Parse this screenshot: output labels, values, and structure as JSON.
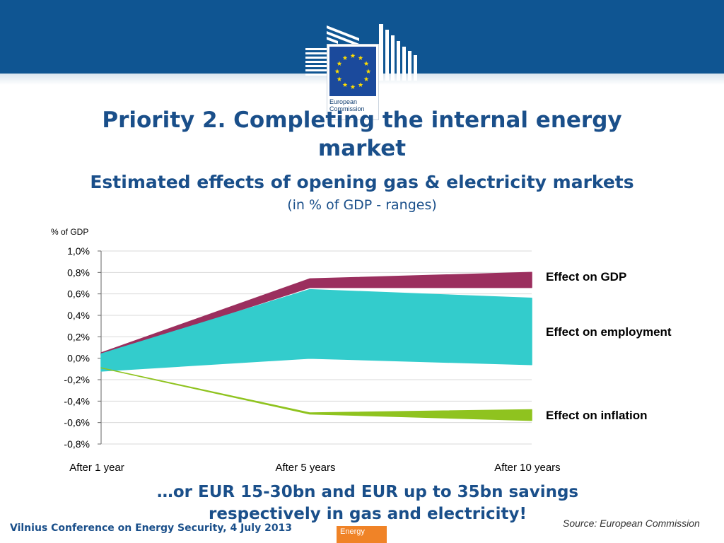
{
  "header": {
    "logo_line1": "European",
    "logo_line2": "Commission",
    "brand_colors": {
      "banner": "#0f5592",
      "title": "#1a4f8a",
      "accent": "#f08327"
    }
  },
  "slide": {
    "title_line1": "Priority 2. Completing the internal energy",
    "title_line2": "market",
    "subtitle": "Estimated effects of opening gas & electricity markets",
    "subtitle2": "(in % of GDP - ranges)",
    "caption_line1": "…or EUR 15-30bn and EUR up to 35bn  savings",
    "caption_line2": "respectively in gas and electricity!"
  },
  "footer": {
    "event": "Vilnius Conference on Energy Security, 4 July 2013",
    "section_tab": "Energy",
    "source_prefix": "Source:",
    "source_name": "European Commission"
  },
  "chart_data": {
    "type": "area",
    "title": "",
    "ylabel": "% of GDP",
    "xlabel": "",
    "categories": [
      "After 1 year",
      "After 5 years",
      "After 10 years"
    ],
    "ylim": [
      -0.8,
      1.0
    ],
    "yticks": [
      "1,0%",
      "0,8%",
      "0,6%",
      "0,4%",
      "0,2%",
      "0,0%",
      "-0,2%",
      "-0,4%",
      "-0,6%",
      "-0,8%"
    ],
    "grid": true,
    "legend": "right, labels beside series",
    "series": [
      {
        "name": "Effect on GDP",
        "low": [
          0.03,
          0.66,
          0.66
        ],
        "high": [
          0.05,
          0.74,
          0.8
        ],
        "color": "#9b2f5e"
      },
      {
        "name": "Effect on employment",
        "low": [
          -0.12,
          0.0,
          -0.06
        ],
        "high": [
          0.04,
          0.64,
          0.56
        ],
        "color": "#33cccc"
      },
      {
        "name": "Effect on inflation",
        "low": [
          -0.09,
          -0.52,
          -0.58
        ],
        "high": [
          -0.09,
          -0.51,
          -0.48
        ],
        "color": "#8fc31f"
      }
    ]
  }
}
